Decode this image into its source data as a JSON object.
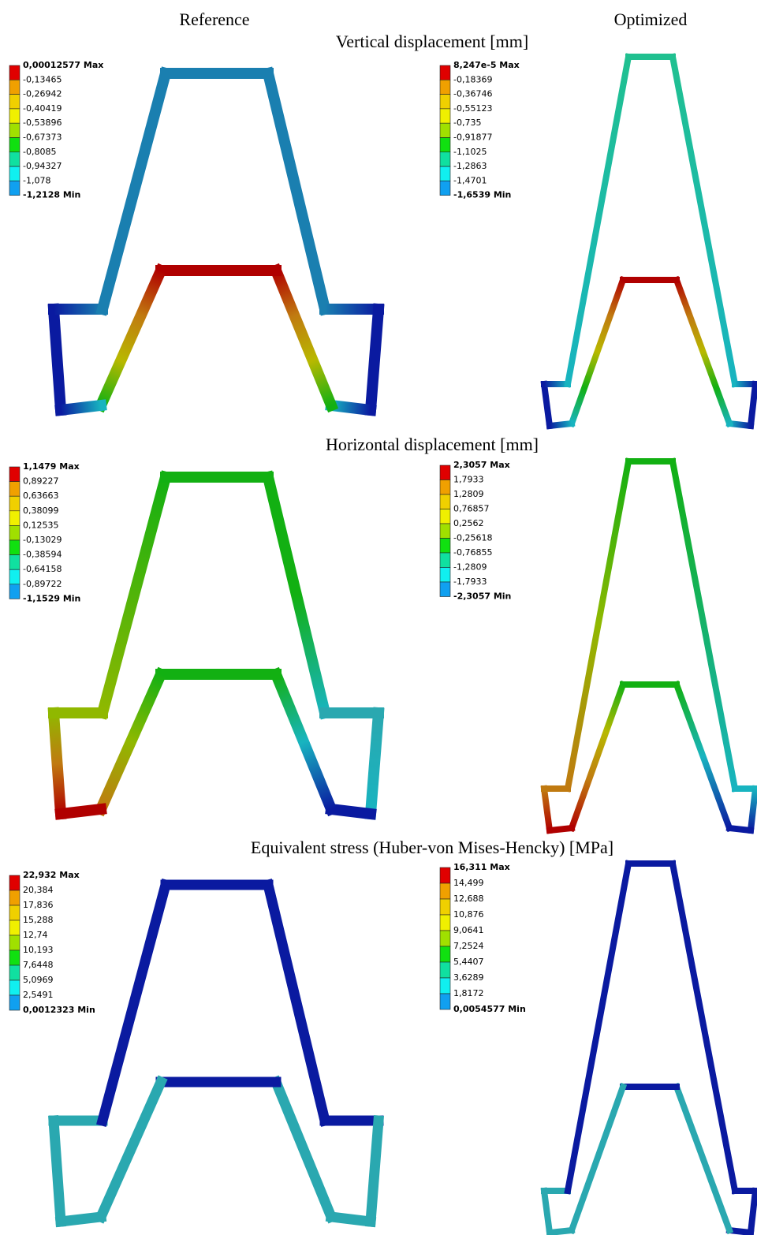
{
  "columns": [
    "Reference",
    "Optimized"
  ],
  "panels": [
    {
      "title": "Vertical displacement [mm]",
      "legends": [
        [
          "0,00012577 Max",
          "-0,13465",
          "-0,26942",
          "-0,40419",
          "-0,53896",
          "-0,67373",
          "-0,8085",
          "-0,94327",
          "-1,078",
          "-1,2128 Min"
        ],
        [
          "8,247e-5 Max",
          "-0,18369",
          "-0,36746",
          "-0,55123",
          "-0,735",
          "-0,91877",
          "-1,1025",
          "-1,2863",
          "-1,4701",
          "-1,6539 Min"
        ]
      ]
    },
    {
      "title": "Horizontal displacement [mm]",
      "legends": [
        [
          "1,1479 Max",
          "0,89227",
          "0,63663",
          "0,38099",
          "0,12535",
          "-0,13029",
          "-0,38594",
          "-0,64158",
          "-0,89722",
          "-1,1529 Min"
        ],
        [
          "2,3057 Max",
          "1,7933",
          "1,2809",
          "0,76857",
          "0,2562",
          "-0,25618",
          "-0,76855",
          "-1,2809",
          "-1,7933",
          "-2,3057 Min"
        ]
      ]
    },
    {
      "title": "Equivalent stress (Huber-von Mises-Hencky) [MPa]",
      "legends": [
        [
          "22,932 Max",
          "20,384",
          "17,836",
          "15,288",
          "12,74",
          "10,193",
          "7,6448",
          "5,0969",
          "2,5491",
          "0,0012323 Min"
        ],
        [
          "16,311 Max",
          "14,499",
          "12,688",
          "10,876",
          "9,0641",
          "7,2524",
          "5,4407",
          "3,6289",
          "1,8172",
          "0,0054577 Min"
        ]
      ]
    }
  ]
}
